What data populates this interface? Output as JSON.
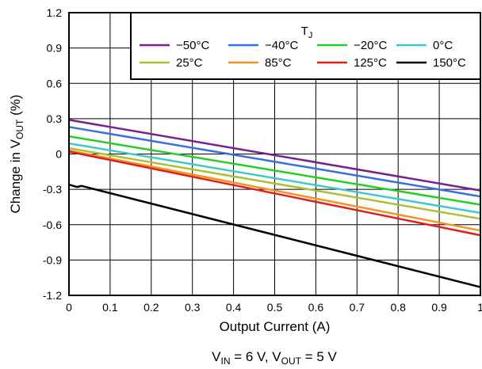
{
  "chart_data": {
    "type": "line",
    "title": "",
    "xlabel": "Output Current (A)",
    "ylabel": {
      "prefix": "Change in V",
      "sub": "OUT",
      "suffix": " (%)"
    },
    "caption": {
      "a": "V",
      "a_sub": "IN",
      "b": " = 6 V, V",
      "b_sub": "OUT",
      "c": " = 5 V"
    },
    "xlim": [
      0,
      1
    ],
    "ylim": [
      -1.2,
      1.2
    ],
    "x_ticks": [
      0,
      0.1,
      0.2,
      0.3,
      0.4,
      0.5,
      0.6,
      0.7,
      0.8,
      0.9,
      1
    ],
    "x_tick_labels": [
      "0",
      "0.1",
      "0.2",
      "0.3",
      "0.4",
      "0.5",
      "0.6",
      "0.7",
      "0.8",
      "0.9",
      "1"
    ],
    "y_ticks": [
      -1.2,
      -0.9,
      -0.6,
      -0.3,
      0,
      0.3,
      0.6,
      0.9,
      1.2
    ],
    "y_tick_labels": [
      "-1.2",
      "-0.9",
      "-0.6",
      "-0.3",
      "0",
      "0.3",
      "0.6",
      "0.9",
      "1.2"
    ],
    "grid": true,
    "legend": {
      "title": "T",
      "title_sub": "J",
      "placement": "top-right"
    },
    "series": [
      {
        "name": "−50°C",
        "color": "#7b1f8e",
        "x": [
          0,
          1
        ],
        "y": [
          0.29,
          -0.31
        ]
      },
      {
        "name": "−40°C",
        "color": "#3a6fe0",
        "x": [
          0,
          1
        ],
        "y": [
          0.23,
          -0.36
        ]
      },
      {
        "name": "−20°C",
        "color": "#22d022",
        "x": [
          0,
          1
        ],
        "y": [
          0.15,
          -0.43
        ]
      },
      {
        "name": "0°C",
        "color": "#40c8c8",
        "x": [
          0,
          1
        ],
        "y": [
          0.09,
          -0.5
        ]
      },
      {
        "name": "25°C",
        "color": "#a8c232",
        "x": [
          0,
          1
        ],
        "y": [
          0.05,
          -0.55
        ]
      },
      {
        "name": "85°C",
        "color": "#f0961e",
        "x": [
          0,
          1
        ],
        "y": [
          0.03,
          -0.65
        ]
      },
      {
        "name": "125°C",
        "color": "#e0201e",
        "x": [
          0,
          1
        ],
        "y": [
          0.02,
          -0.69
        ]
      },
      {
        "name": "150°C",
        "color": "#000000",
        "x": [
          0,
          0.02,
          0.03,
          1
        ],
        "y": [
          -0.26,
          -0.28,
          -0.27,
          -1.13
        ]
      }
    ]
  }
}
